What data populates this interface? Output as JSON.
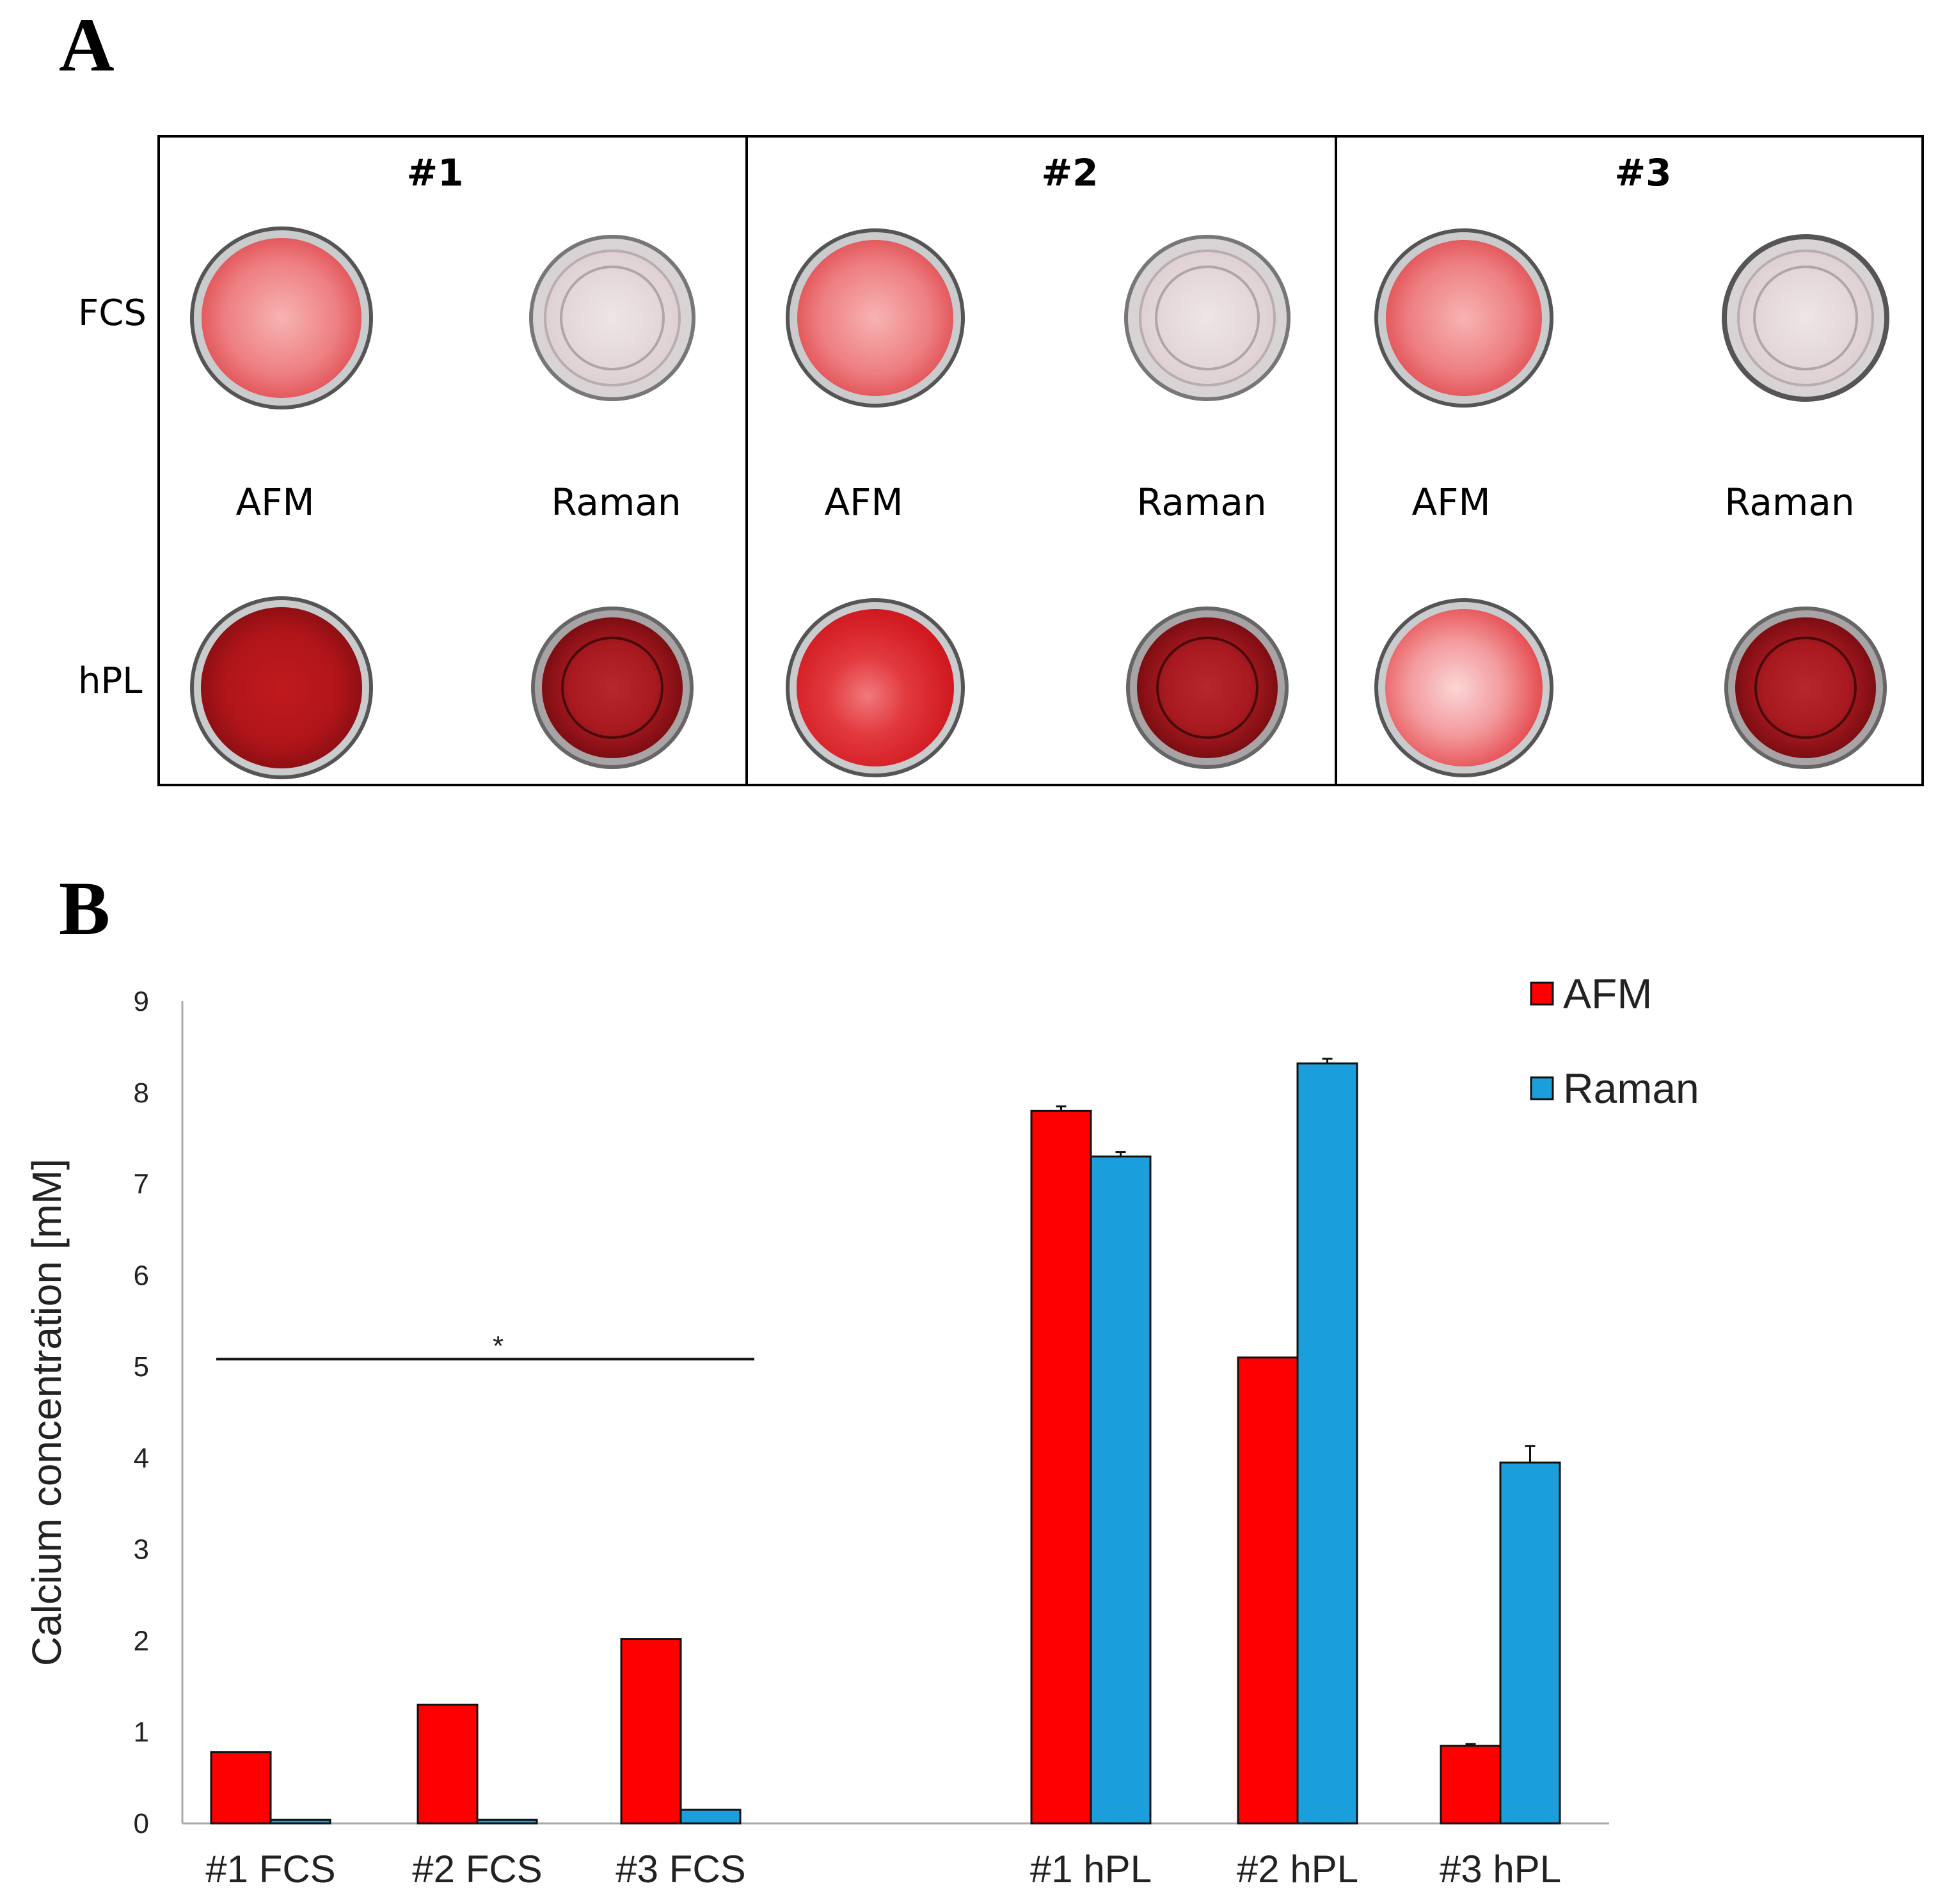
{
  "panel_a": {
    "letter": "A",
    "row_labels": [
      "FCS",
      "hPL"
    ],
    "column_labels": [
      "AFM",
      "Raman"
    ],
    "groups": [
      {
        "title": "#1",
        "wells": {
          "FCS_AFM": "light-red",
          "FCS_Raman": "clear",
          "hPL_AFM": "dark-red",
          "hPL_Raman": "dark-red-ring"
        }
      },
      {
        "title": "#2",
        "wells": {
          "FCS_AFM": "light-red",
          "FCS_Raman": "clear",
          "hPL_AFM": "red-mottled",
          "hPL_Raman": "dark-red-ring"
        }
      },
      {
        "title": "#3",
        "wells": {
          "FCS_AFM": "light-red",
          "FCS_Raman": "clear",
          "hPL_AFM": "pale-red",
          "hPL_Raman": "dark-red-ring"
        }
      }
    ]
  },
  "panel_b": {
    "letter": "B",
    "significance_label": "*"
  },
  "chart_data": {
    "type": "bar",
    "title": "",
    "xlabel": "",
    "ylabel": "Calcium concentration [mM]",
    "ylim": [
      0,
      9
    ],
    "yticks": [
      "0",
      "1",
      "2",
      "3",
      "4",
      "5",
      "6",
      "7",
      "8",
      "9"
    ],
    "categories": [
      "#1 FCS",
      "#2 FCS",
      "#3 FCS",
      "#1 hPL",
      "#2 hPL",
      "#3 hPL"
    ],
    "legend_position": "top-right",
    "series": [
      {
        "name": "AFM",
        "color": "#ff0000",
        "values": [
          0.78,
          1.3,
          2.02,
          7.8,
          5.1,
          0.85
        ],
        "errors": [
          0,
          0,
          0,
          0.05,
          0,
          0.02
        ]
      },
      {
        "name": "Raman",
        "color": "#1a9fdc",
        "values": [
          0.04,
          0.04,
          0.15,
          7.3,
          8.32,
          3.95
        ],
        "errors": [
          0,
          0,
          0,
          0.05,
          0.05,
          0.18
        ]
      }
    ],
    "annotations": [
      {
        "text": "*",
        "spans": [
          "#1 FCS",
          "#3 FCS"
        ],
        "y": 4.9
      }
    ]
  }
}
